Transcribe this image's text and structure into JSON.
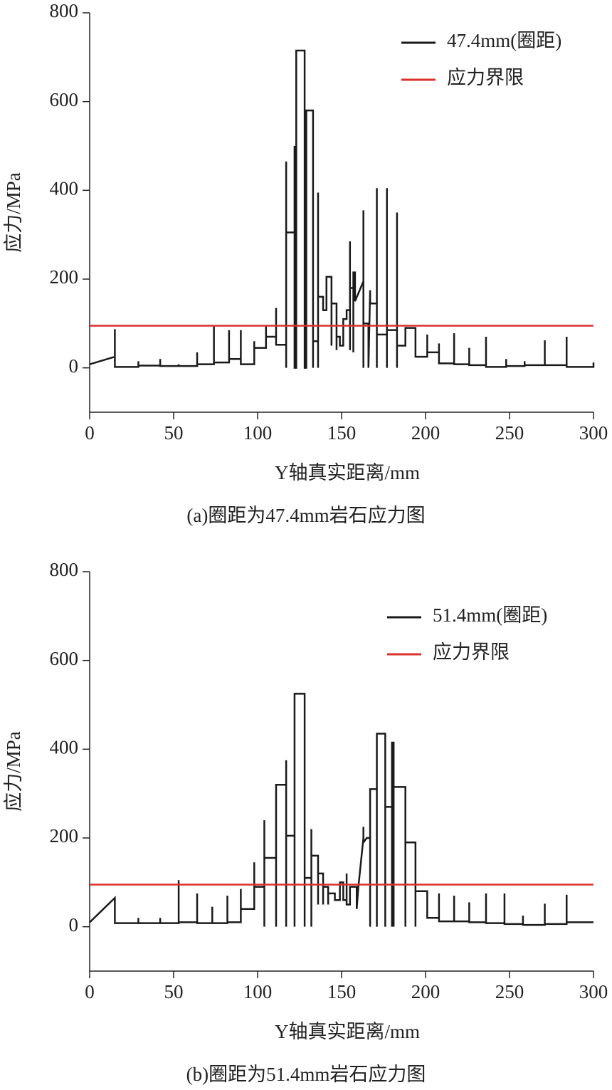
{
  "chart_data": [
    {
      "type": "line",
      "caption": "(a)圈距为47.4mm岩石应力图",
      "x_label": "Y轴真实距离/mm",
      "y_label": "应力/MPa",
      "xlim": [
        0,
        300
      ],
      "xticks": [
        0,
        50,
        100,
        150,
        200,
        250,
        300
      ],
      "ylim": [
        -100,
        800
      ],
      "yticks": [
        0,
        200,
        400,
        600,
        800
      ],
      "legend": "upper right",
      "series": [
        {
          "name": "47.4mm(圈距)",
          "color": "#1a1a1a",
          "x": [
            0,
            15,
            15,
            15,
            29,
            29,
            29,
            42,
            42,
            42,
            53,
            53,
            53,
            64,
            64,
            64,
            74,
            74,
            74,
            83,
            83,
            83,
            90,
            90,
            90,
            98,
            98,
            98,
            105,
            105,
            105,
            111,
            111,
            111,
            117,
            117,
            117,
            117,
            122,
            122,
            122,
            123,
            123,
            128,
            128,
            129,
            129,
            133,
            133,
            133,
            136,
            136,
            136,
            136,
            139,
            139,
            141,
            141,
            144,
            144,
            144,
            147,
            147,
            147,
            149,
            149,
            151,
            151,
            153,
            153,
            155,
            155,
            155,
            155,
            157,
            157,
            157,
            158,
            158,
            163,
            163,
            163,
            163,
            166,
            166,
            167,
            167,
            171,
            171,
            171,
            171,
            177,
            177,
            177,
            177,
            183,
            183,
            183,
            183,
            188,
            188,
            194,
            194,
            201,
            201,
            201,
            208,
            208,
            208,
            217,
            217,
            217,
            226,
            226,
            226,
            236,
            236,
            236,
            248,
            248,
            248,
            259,
            259,
            259,
            271,
            271,
            271,
            284,
            284,
            284,
            300,
            300
          ],
          "values": [
            8,
            25,
            87,
            2,
            2,
            15,
            5,
            5,
            20,
            4,
            4,
            8,
            4,
            4,
            35,
            8,
            8,
            95,
            12,
            12,
            85,
            20,
            20,
            85,
            8,
            8,
            60,
            45,
            45,
            95,
            70,
            70,
            135,
            52,
            52,
            465,
            0,
            305,
            305,
            500,
            0,
            0,
            715,
            715,
            0,
            0,
            580,
            580,
            0,
            60,
            60,
            395,
            0,
            160,
            160,
            130,
            130,
            205,
            205,
            50,
            145,
            145,
            40,
            70,
            70,
            50,
            50,
            110,
            110,
            130,
            130,
            285,
            40,
            180,
            180,
            35,
            215,
            215,
            150,
            195,
            355,
            0,
            100,
            100,
            0,
            175,
            145,
            145,
            405,
            0,
            75,
            75,
            405,
            0,
            85,
            85,
            350,
            0,
            50,
            50,
            90,
            90,
            25,
            25,
            75,
            35,
            35,
            55,
            10,
            10,
            78,
            8,
            8,
            45,
            6,
            6,
            70,
            2,
            2,
            20,
            4,
            4,
            15,
            6,
            6,
            62,
            6,
            6,
            70,
            2,
            2,
            12
          ]
        },
        {
          "name": "应力界限",
          "color": "#d9302c",
          "x": [
            0,
            300
          ],
          "values": [
            95,
            95
          ]
        }
      ]
    },
    {
      "type": "line",
      "caption": "(b)圈距为51.4mm岩石应力图",
      "x_label": "Y轴真实距离/mm",
      "y_label": "应力/MPa",
      "xlim": [
        0,
        300
      ],
      "xticks": [
        0,
        50,
        100,
        150,
        200,
        250,
        300
      ],
      "ylim": [
        -100,
        800
      ],
      "yticks": [
        0,
        200,
        400,
        600,
        800
      ],
      "legend": "upper right",
      "series": [
        {
          "name": "51.4mm(圈距)",
          "color": "#1a1a1a",
          "x": [
            0,
            15,
            15,
            29,
            29,
            29,
            42,
            42,
            42,
            53,
            53,
            53,
            64,
            64,
            64,
            73,
            73,
            73,
            82,
            82,
            82,
            90,
            90,
            90,
            98,
            98,
            98,
            104,
            104,
            104,
            104,
            111,
            111,
            111,
            117,
            117,
            117,
            117,
            122,
            122,
            122,
            128,
            128,
            128,
            132,
            132,
            132,
            132,
            136,
            136,
            136,
            139,
            139,
            139,
            142,
            142,
            142,
            146,
            146,
            149,
            149,
            151,
            151,
            153,
            153,
            153,
            155,
            155,
            159,
            159,
            160,
            163,
            163,
            163,
            165,
            167,
            167,
            167,
            171,
            171,
            171,
            176,
            176,
            176,
            180,
            180,
            180,
            181,
            181,
            181,
            188,
            188,
            188,
            194,
            194,
            194,
            201,
            201,
            208,
            208,
            208,
            217,
            217,
            217,
            226,
            226,
            226,
            236,
            236,
            236,
            247,
            247,
            247,
            258,
            258,
            258,
            271,
            271,
            271,
            284,
            284,
            284,
            300
          ],
          "values": [
            10,
            65,
            8,
            8,
            20,
            8,
            8,
            20,
            8,
            8,
            105,
            10,
            10,
            75,
            8,
            8,
            45,
            8,
            8,
            70,
            10,
            10,
            85,
            40,
            40,
            145,
            90,
            90,
            240,
            0,
            155,
            155,
            0,
            320,
            320,
            375,
            0,
            205,
            205,
            0,
            525,
            525,
            0,
            110,
            110,
            220,
            0,
            160,
            160,
            50,
            120,
            120,
            50,
            90,
            90,
            50,
            75,
            75,
            60,
            60,
            100,
            100,
            60,
            60,
            120,
            50,
            50,
            90,
            90,
            40,
            90,
            200,
            225,
            190,
            200,
            200,
            0,
            310,
            310,
            0,
            435,
            435,
            0,
            270,
            270,
            0,
            415,
            415,
            0,
            315,
            315,
            0,
            190,
            190,
            0,
            80,
            80,
            20,
            20,
            75,
            12,
            12,
            70,
            12,
            12,
            55,
            10,
            10,
            75,
            8,
            8,
            75,
            6,
            6,
            25,
            4,
            4,
            52,
            6,
            6,
            72,
            10,
            10
          ]
        },
        {
          "name": "应力界限",
          "color": "#d9302c",
          "x": [
            0,
            300
          ],
          "values": [
            95,
            95
          ]
        }
      ]
    }
  ]
}
